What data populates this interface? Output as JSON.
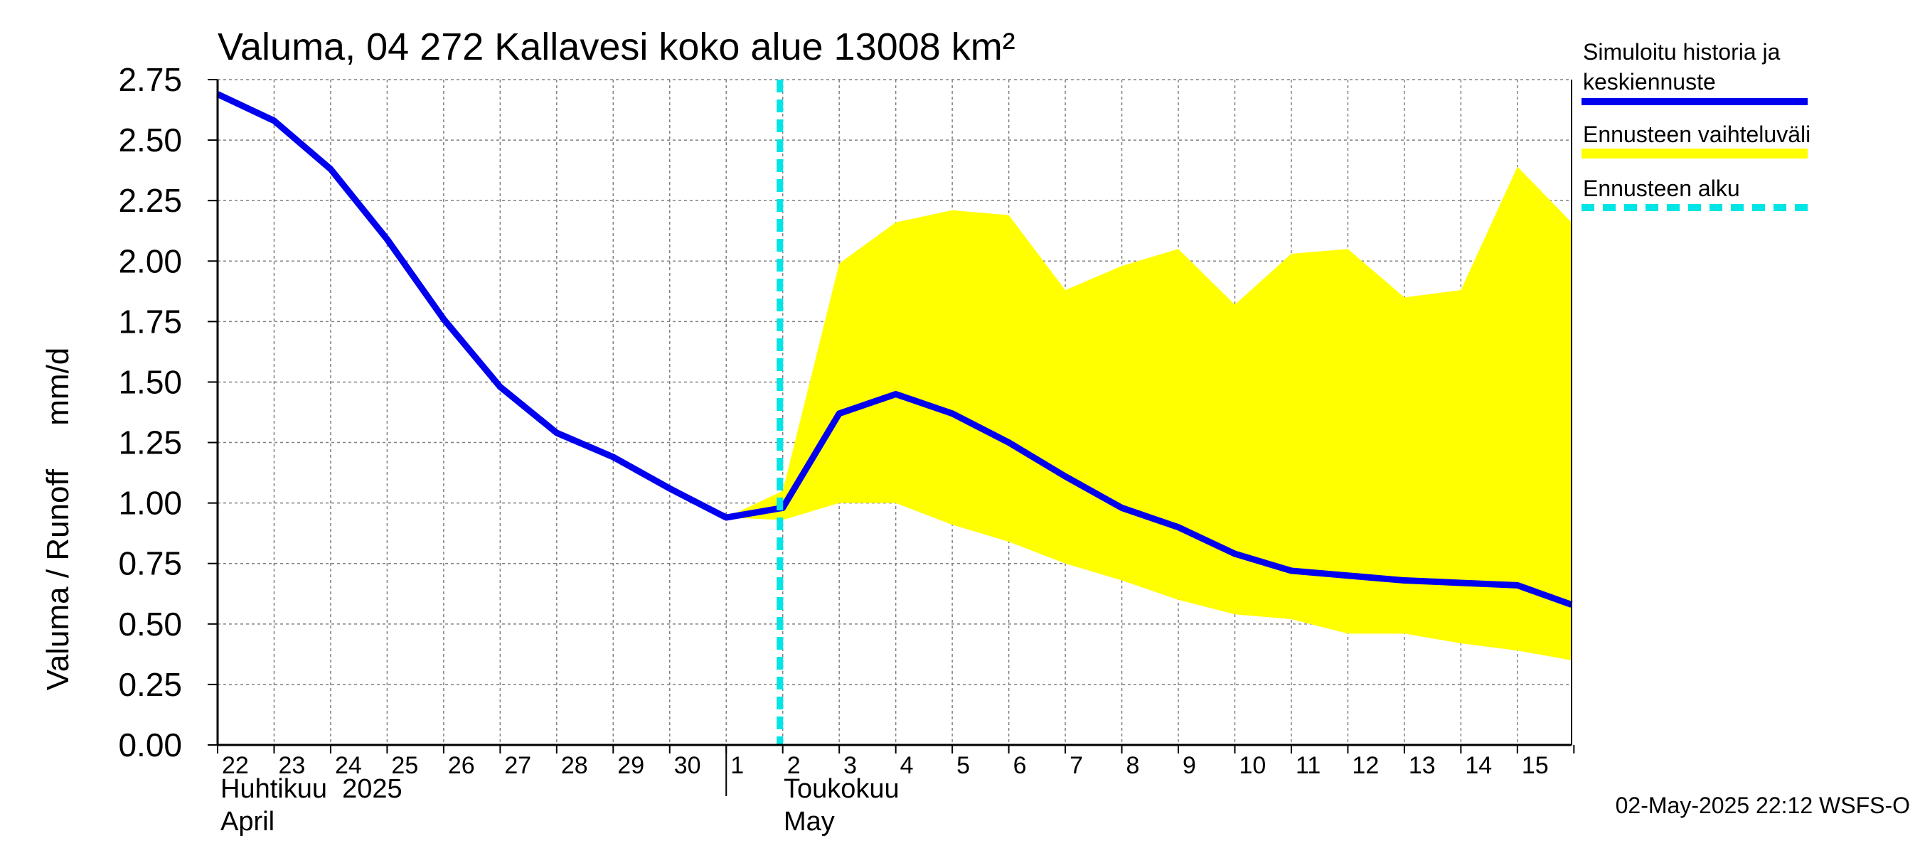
{
  "chart_data": {
    "type": "area",
    "title": "Valuma, 04 272 Kallavesi koko alue 13008 km²",
    "ylabel": "Valuma / Runoff     mm/d",
    "ylim": [
      0,
      2.75
    ],
    "yticks": [
      "0.00",
      "0.25",
      "0.50",
      "0.75",
      "1.00",
      "1.25",
      "1.50",
      "1.75",
      "2.00",
      "2.25",
      "2.50",
      "2.75"
    ],
    "xlim": [
      "2025-04-22",
      "2025-05-15T23:00"
    ],
    "x_tick_labels": [
      "22",
      "23",
      "24",
      "25",
      "26",
      "27",
      "28",
      "29",
      "30",
      "1",
      "2",
      "3",
      "4",
      "5",
      "6",
      "7",
      "8",
      "9",
      "10",
      "11",
      "12",
      "13",
      "14",
      "15"
    ],
    "month_labels": [
      {
        "fi": "Huhtikuu  2025",
        "en": "April"
      },
      {
        "fi": "Toukokuu",
        "en": "May"
      }
    ],
    "grid": true,
    "legend_position": "right",
    "legend": {
      "history_label": [
        "Simuloitu historia ja",
        "keskiennuste"
      ],
      "range_label": "Ennusteen vaihteluväli",
      "start_label": "Ennusteen alku"
    },
    "colors": {
      "history": "#0000ee",
      "range": "#ffff00",
      "start": "#00e5e5",
      "grid": "#808080"
    },
    "forecast_start": "2025-05-02",
    "series": [
      {
        "name": "Simuloitu historia ja keskiennuste",
        "x": [
          "2025-04-22",
          "2025-04-23",
          "2025-04-24",
          "2025-04-25",
          "2025-04-26",
          "2025-04-27",
          "2025-04-28",
          "2025-04-29",
          "2025-04-30",
          "2025-05-01",
          "2025-05-02",
          "2025-05-03",
          "2025-05-04",
          "2025-05-05",
          "2025-05-06",
          "2025-05-07",
          "2025-05-08",
          "2025-05-09",
          "2025-05-10",
          "2025-05-11",
          "2025-05-12",
          "2025-05-13",
          "2025-05-14",
          "2025-05-15",
          "2025-05-15T23:00"
        ],
        "values": [
          2.69,
          2.58,
          2.38,
          2.09,
          1.76,
          1.48,
          1.29,
          1.19,
          1.06,
          0.94,
          0.98,
          1.37,
          1.45,
          1.37,
          1.25,
          1.11,
          0.98,
          0.9,
          0.79,
          0.72,
          0.7,
          0.68,
          0.67,
          0.66,
          0.58
        ]
      },
      {
        "name": "Ennusteen vaihteluväli",
        "x": [
          "2025-05-01",
          "2025-05-02",
          "2025-05-03",
          "2025-05-04",
          "2025-05-05",
          "2025-05-06",
          "2025-05-07",
          "2025-05-08",
          "2025-05-09",
          "2025-05-10",
          "2025-05-11",
          "2025-05-12",
          "2025-05-13",
          "2025-05-14",
          "2025-05-15",
          "2025-05-15T23:00"
        ],
        "upper": [
          0.94,
          1.05,
          1.99,
          2.16,
          2.21,
          2.19,
          1.88,
          1.98,
          2.05,
          1.82,
          2.03,
          2.05,
          1.85,
          1.88,
          2.39,
          2.16
        ],
        "lower": [
          0.94,
          0.93,
          1.0,
          1.0,
          0.91,
          0.84,
          0.75,
          0.68,
          0.6,
          0.54,
          0.52,
          0.46,
          0.46,
          0.42,
          0.39,
          0.35
        ]
      }
    ]
  },
  "footer": {
    "timestamp": "02-May-2025 22:12 WSFS-O"
  }
}
